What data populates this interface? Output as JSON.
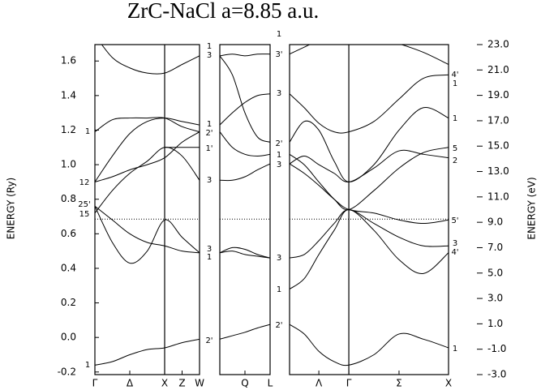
{
  "chart_data": {
    "type": "line",
    "title": "ZrC-NaCl a=8.85 a.u.",
    "y_label": "ENERGY (Ry)",
    "y2_label": "ENERGY (eV)",
    "ylim": [
      -0.215,
      1.695
    ],
    "yticks": [
      1.6,
      1.4,
      1.2,
      {
        "value": 1.0,
        "label": "1.0"
      },
      0.8,
      0.6,
      0.4,
      0.2,
      {
        "value": 0.0,
        "label": "0.0"
      },
      -0.2
    ],
    "y2lim": [
      -3.0,
      23.0
    ],
    "y2ticks": [
      {
        "value": 23.0,
        "label": "23.0"
      },
      {
        "value": 21.0,
        "label": "21.0"
      },
      {
        "value": 19.0,
        "label": "19.0"
      },
      {
        "value": 17.0,
        "label": "17.0"
      },
      {
        "value": 15.0,
        "label": "15.0"
      },
      {
        "value": 13.0,
        "label": "13.0"
      },
      {
        "value": 11.0,
        "label": "11.0"
      },
      {
        "value": 9.0,
        "label": "9.0"
      },
      {
        "value": 7.0,
        "label": "7.0"
      },
      {
        "value": 5.0,
        "label": "5.0"
      },
      {
        "value": 3.0,
        "label": "3.0"
      },
      {
        "value": 1.0,
        "label": "1.0"
      },
      {
        "value": -1.0,
        "label": "-1.0"
      },
      {
        "value": -3.0,
        "label": "-3.0"
      }
    ],
    "fermi_level": 0.685,
    "color": "#000000",
    "panels": [
      {
        "xlim": [
          0,
          1.5
        ],
        "divider": 1,
        "xticks": [
          {
            "value": 0,
            "label": "Γ"
          },
          {
            "value": 0.5,
            "label": "Δ"
          },
          {
            "value": 1,
            "label": "X"
          },
          {
            "value": 1.25,
            "label": "Z"
          },
          {
            "value": 1.5,
            "label": "W"
          }
        ],
        "x": [
          0,
          0.25,
          0.5,
          0.75,
          1,
          1.25,
          1.5
        ],
        "series": [
          {
            "values": [
              -0.16,
              -0.14,
              -0.1,
              -0.07,
              -0.06,
              -0.03,
              -0.01
            ]
          },
          {
            "values": [
              0.76,
              0.55,
              0.43,
              0.5,
              0.68,
              0.58,
              0.49
            ]
          },
          {
            "values": [
              0.76,
              0.68,
              0.6,
              0.55,
              0.53,
              0.5,
              0.49
            ]
          },
          {
            "values": [
              0.72,
              0.85,
              0.95,
              1.02,
              1.1,
              1.05,
              0.91
            ]
          },
          {
            "values": [
              0.9,
              0.93,
              0.97,
              1.0,
              1.04,
              1.13,
              1.19
            ]
          },
          {
            "values": [
              0.9,
              1.05,
              1.18,
              1.25,
              1.27,
              1.25,
              1.23
            ]
          },
          {
            "values": [
              1.19,
              1.26,
              1.27,
              1.27,
              1.27,
              1.22,
              1.19
            ]
          },
          {
            "values": [
              1.75,
              1.62,
              1.56,
              1.53,
              1.53,
              1.58,
              1.63
            ]
          },
          {
            "values": [
              null,
              null,
              null,
              null,
              1.1,
              1.1,
              1.1
            ]
          }
        ]
      },
      {
        "xlim": [
          0,
          0.72
        ],
        "xticks": [
          {
            "value": 0.36,
            "label": "Q"
          },
          {
            "value": 0.72,
            "label": "L"
          }
        ],
        "x": [
          0,
          0.18,
          0.36,
          0.54,
          0.72
        ],
        "series": [
          {
            "values": [
              -0.01,
              0.01,
              0.03,
              0.055,
              0.075
            ]
          },
          {
            "values": [
              0.49,
              0.5,
              0.48,
              0.47,
              0.46
            ]
          },
          {
            "values": [
              0.49,
              0.52,
              0.51,
              0.48,
              0.46
            ]
          },
          {
            "values": [
              0.91,
              0.91,
              0.93,
              0.97,
              1.005
            ]
          },
          {
            "values": [
              1.19,
              1.1,
              1.06,
              1.05,
              1.06
            ]
          },
          {
            "values": [
              1.23,
              1.3,
              1.36,
              1.4,
              1.41
            ]
          },
          {
            "values": [
              1.63,
              1.52,
              1.3,
              1.16,
              1.13
            ]
          },
          {
            "values": [
              1.63,
              1.64,
              1.63,
              1.64,
              1.64
            ]
          }
        ]
      },
      {
        "xlim": [
          0,
          2.28
        ],
        "divider": 0.85,
        "xticks": [
          {
            "value": 0.42,
            "label": "Λ"
          },
          {
            "value": 0.85,
            "label": "Γ"
          },
          {
            "value": 1.57,
            "label": "Σ"
          },
          {
            "value": 2.28,
            "label": "X"
          }
        ],
        "x": [
          0,
          0.21,
          0.42,
          0.64,
          0.85,
          1.21,
          1.57,
          1.92,
          2.28
        ],
        "series": [
          {
            "values": [
              0.075,
              0.02,
              -0.08,
              -0.14,
              -0.16,
              -0.1,
              0.02,
              -0.01,
              -0.06
            ]
          },
          {
            "values": [
              0.28,
              0.34,
              0.48,
              0.62,
              0.74,
              0.62,
              0.45,
              0.37,
              0.49
            ]
          },
          {
            "values": [
              0.46,
              0.48,
              0.56,
              0.66,
              0.74,
              0.66,
              0.58,
              0.53,
              0.53
            ]
          },
          {
            "values": [
              1.005,
              0.95,
              0.88,
              0.8,
              0.74,
              0.72,
              0.68,
              0.66,
              0.68
            ]
          },
          {
            "values": [
              1.005,
              1.05,
              1.0,
              0.95,
              0.9,
              0.98,
              1.08,
              1.06,
              1.04
            ]
          },
          {
            "values": [
              1.06,
              1.0,
              0.9,
              0.8,
              0.74,
              0.85,
              0.98,
              1.07,
              1.1
            ]
          },
          {
            "values": [
              1.13,
              1.25,
              1.2,
              1.02,
              0.9,
              1.0,
              1.2,
              1.33,
              1.27
            ]
          },
          {
            "values": [
              1.41,
              1.33,
              1.24,
              1.19,
              1.19,
              1.25,
              1.38,
              1.5,
              1.52
            ]
          },
          {
            "values": [
              1.64,
              1.68,
              1.72,
              1.75,
              1.76,
              1.74,
              1.7,
              1.65,
              1.58
            ]
          }
        ]
      }
    ],
    "band_labels": [
      "1",
      "12",
      "25'",
      "15",
      "1",
      "1",
      "3",
      "1",
      "2'",
      "1'",
      "3",
      "3",
      "1",
      "2'",
      "1",
      "3'",
      "3",
      "2'",
      "1",
      "3",
      "3",
      "1",
      "2'",
      "4'",
      "1",
      "1",
      "5",
      "2",
      "5'",
      "3",
      "4'",
      "1"
    ]
  }
}
